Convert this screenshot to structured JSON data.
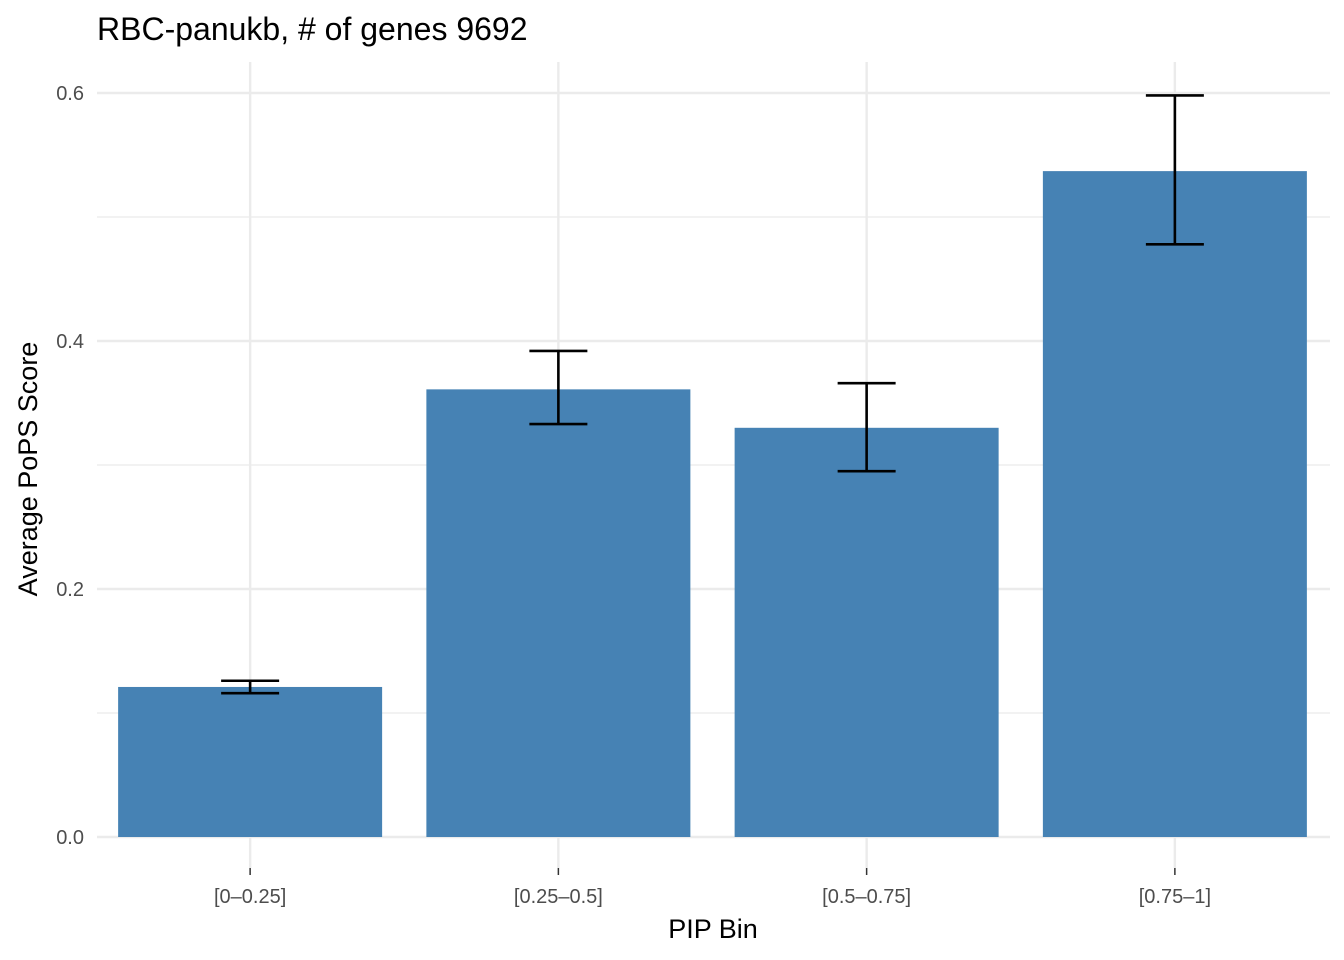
{
  "chart_data": {
    "type": "bar",
    "title": "RBC-panukb, # of genes 9692",
    "xlabel": "PIP Bin",
    "ylabel": "Average PoPS Score",
    "categories": [
      "[0–0.25]",
      "[0.25–0.5]",
      "[0.5–0.75]",
      "[0.75–1]"
    ],
    "values": [
      0.121,
      0.361,
      0.33,
      0.537
    ],
    "error_low": [
      0.116,
      0.333,
      0.295,
      0.478
    ],
    "error_high": [
      0.126,
      0.392,
      0.366,
      0.598
    ],
    "ylim": [
      -0.025,
      0.625
    ],
    "yticks": [
      0.0,
      0.2,
      0.4,
      0.6
    ],
    "ytick_labels": [
      "0.0",
      "0.2",
      "0.4",
      "0.6"
    ],
    "grid": true,
    "bar_color": "#4682B4",
    "error_color": "#000000",
    "grid_color": "#ebebeb"
  }
}
